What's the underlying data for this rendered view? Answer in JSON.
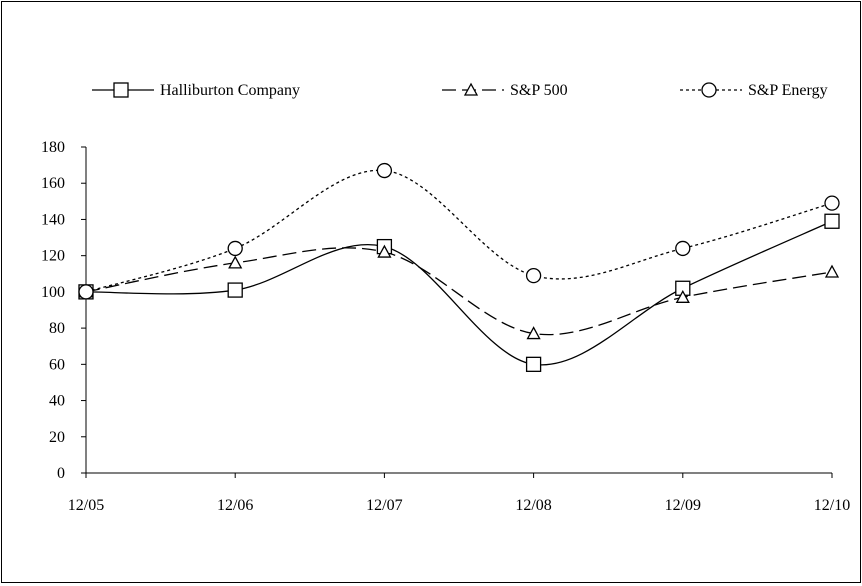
{
  "chart_data": {
    "type": "line",
    "categories": [
      "12/05",
      "12/06",
      "12/07",
      "12/08",
      "12/09",
      "12/10"
    ],
    "ylim": [
      0,
      180
    ],
    "yticks": [
      0,
      20,
      40,
      60,
      80,
      100,
      120,
      140,
      160,
      180
    ],
    "grid": false,
    "legend_position": "top",
    "series": [
      {
        "name": "Halliburton Company",
        "values": [
          100,
          101,
          125,
          60,
          102,
          139
        ],
        "marker": "square",
        "dash": "solid",
        "color": "#000000"
      },
      {
        "name": "S&P 500",
        "values": [
          100,
          116,
          122,
          77,
          97,
          111
        ],
        "marker": "triangle",
        "dash": "dashed",
        "color": "#000000"
      },
      {
        "name": "S&P Energy",
        "values": [
          100,
          124,
          167,
          109,
          124,
          149
        ],
        "marker": "circle",
        "dash": "dotted",
        "color": "#000000"
      }
    ]
  }
}
